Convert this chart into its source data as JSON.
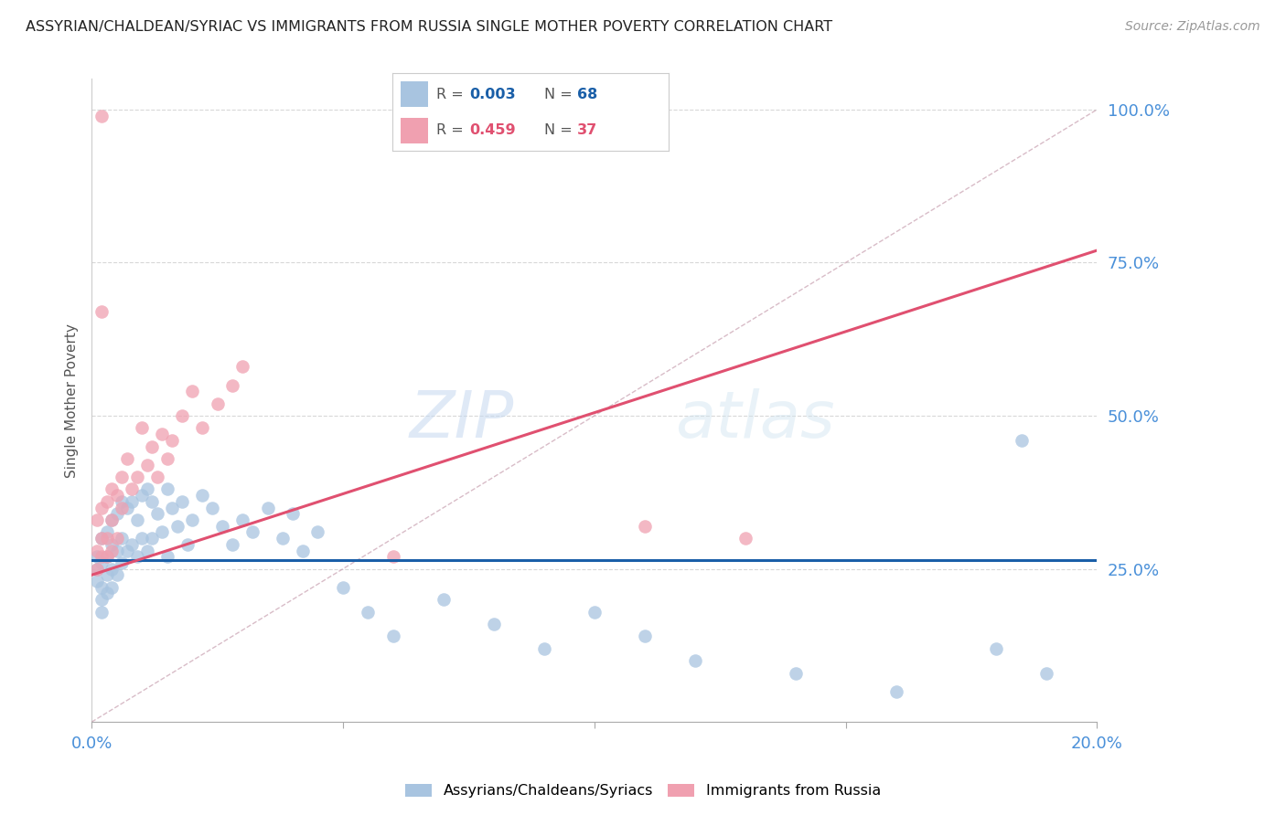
{
  "title": "ASSYRIAN/CHALDEAN/SYRIAC VS IMMIGRANTS FROM RUSSIA SINGLE MOTHER POVERTY CORRELATION CHART",
  "source": "Source: ZipAtlas.com",
  "ylabel": "Single Mother Poverty",
  "xmin": 0.0,
  "xmax": 0.2,
  "ymin": 0.0,
  "ymax": 1.05,
  "yticks": [
    0.25,
    0.5,
    0.75,
    1.0
  ],
  "ytick_labels": [
    "25.0%",
    "50.0%",
    "75.0%",
    "100.0%"
  ],
  "blue_color": "#a8c4e0",
  "pink_color": "#f0a0b0",
  "blue_line_color": "#1a5fa8",
  "pink_line_color": "#e05070",
  "legend_label_blue": "Assyrians/Chaldeans/Syriacs",
  "legend_label_pink": "Immigrants from Russia",
  "watermark_zip": "ZIP",
  "watermark_atlas": "atlas",
  "background_color": "#ffffff",
  "grid_color": "#d8d8d8",
  "blue_x": [
    0.001,
    0.001,
    0.001,
    0.002,
    0.002,
    0.002,
    0.002,
    0.002,
    0.003,
    0.003,
    0.003,
    0.003,
    0.004,
    0.004,
    0.004,
    0.004,
    0.005,
    0.005,
    0.005,
    0.006,
    0.006,
    0.006,
    0.007,
    0.007,
    0.008,
    0.008,
    0.009,
    0.009,
    0.01,
    0.01,
    0.011,
    0.011,
    0.012,
    0.012,
    0.013,
    0.014,
    0.015,
    0.015,
    0.016,
    0.017,
    0.018,
    0.019,
    0.02,
    0.022,
    0.024,
    0.026,
    0.028,
    0.03,
    0.032,
    0.035,
    0.038,
    0.04,
    0.042,
    0.045,
    0.05,
    0.055,
    0.06,
    0.07,
    0.08,
    0.09,
    0.1,
    0.11,
    0.12,
    0.14,
    0.16,
    0.18,
    0.19,
    0.185
  ],
  "blue_y": [
    0.25,
    0.27,
    0.23,
    0.3,
    0.26,
    0.22,
    0.2,
    0.18,
    0.31,
    0.27,
    0.24,
    0.21,
    0.33,
    0.29,
    0.25,
    0.22,
    0.34,
    0.28,
    0.24,
    0.36,
    0.3,
    0.26,
    0.35,
    0.28,
    0.36,
    0.29,
    0.33,
    0.27,
    0.37,
    0.3,
    0.38,
    0.28,
    0.36,
    0.3,
    0.34,
    0.31,
    0.38,
    0.27,
    0.35,
    0.32,
    0.36,
    0.29,
    0.33,
    0.37,
    0.35,
    0.32,
    0.29,
    0.33,
    0.31,
    0.35,
    0.3,
    0.34,
    0.28,
    0.31,
    0.22,
    0.18,
    0.14,
    0.2,
    0.16,
    0.12,
    0.18,
    0.14,
    0.1,
    0.08,
    0.05,
    0.12,
    0.08,
    0.46
  ],
  "pink_x": [
    0.001,
    0.001,
    0.001,
    0.002,
    0.002,
    0.002,
    0.002,
    0.003,
    0.003,
    0.003,
    0.004,
    0.004,
    0.004,
    0.005,
    0.005,
    0.006,
    0.006,
    0.007,
    0.008,
    0.009,
    0.01,
    0.011,
    0.012,
    0.013,
    0.014,
    0.015,
    0.016,
    0.018,
    0.02,
    0.022,
    0.025,
    0.028,
    0.03,
    0.06,
    0.11,
    0.13,
    0.002
  ],
  "pink_y": [
    0.28,
    0.33,
    0.25,
    0.35,
    0.3,
    0.27,
    0.99,
    0.36,
    0.3,
    0.27,
    0.38,
    0.33,
    0.28,
    0.37,
    0.3,
    0.4,
    0.35,
    0.43,
    0.38,
    0.4,
    0.48,
    0.42,
    0.45,
    0.4,
    0.47,
    0.43,
    0.46,
    0.5,
    0.54,
    0.48,
    0.52,
    0.55,
    0.58,
    0.27,
    0.32,
    0.3,
    0.67
  ],
  "blue_line_y_at_0": 0.265,
  "blue_line_y_at_max": 0.265,
  "pink_line_y_at_0": 0.24,
  "pink_line_y_at_max": 0.77,
  "dash_line_y_at_max": 1.0
}
